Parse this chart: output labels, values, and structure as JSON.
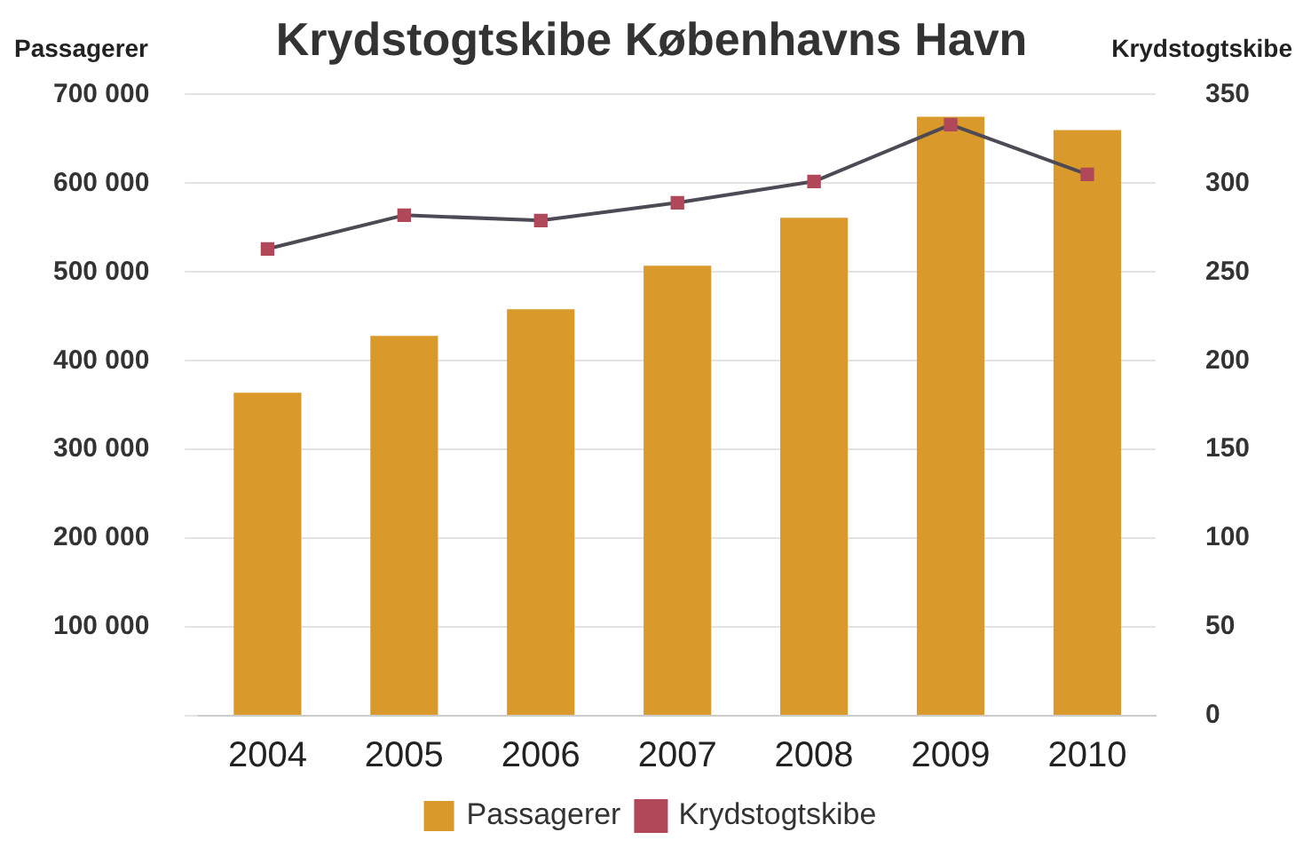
{
  "chart_data": {
    "type": "bar",
    "title": "Krydstogtskibe Københavns Havn",
    "ylabel": "Passagerer",
    "y2label": "Krydstogtskibe",
    "categories": [
      "2004",
      "2005",
      "2006",
      "2007",
      "2008",
      "2009",
      "2010"
    ],
    "series": [
      {
        "name": "Passagerer",
        "color": "#d99a2b",
        "values": [
          364000,
          428000,
          458000,
          507000,
          561000,
          675000,
          660000
        ]
      },
      {
        "name": "Krydstogtskibe",
        "type": "line",
        "axis": "y2",
        "color": "#b0485a",
        "values": [
          263,
          282,
          279,
          289,
          301,
          333,
          305
        ]
      }
    ],
    "ylim": [
      0,
      700000
    ],
    "yticks": [
      {
        "value": 0,
        "label": null
      },
      {
        "value": 100000,
        "label": "100 000"
      },
      {
        "value": 200000,
        "label": "200 000"
      },
      {
        "value": 300000,
        "label": "300 000"
      },
      {
        "value": 400000,
        "label": "400 000"
      },
      {
        "value": 500000,
        "label": "500 000"
      },
      {
        "value": 600000,
        "label": "600 000"
      },
      {
        "value": 700000,
        "label": "700 000"
      }
    ],
    "y2lim": [
      0,
      350
    ],
    "y2ticks": [
      0,
      50,
      100,
      150,
      200,
      250,
      300,
      350
    ],
    "grid": "y",
    "legend": "bottom",
    "marker": "square",
    "line_style": "solid"
  }
}
